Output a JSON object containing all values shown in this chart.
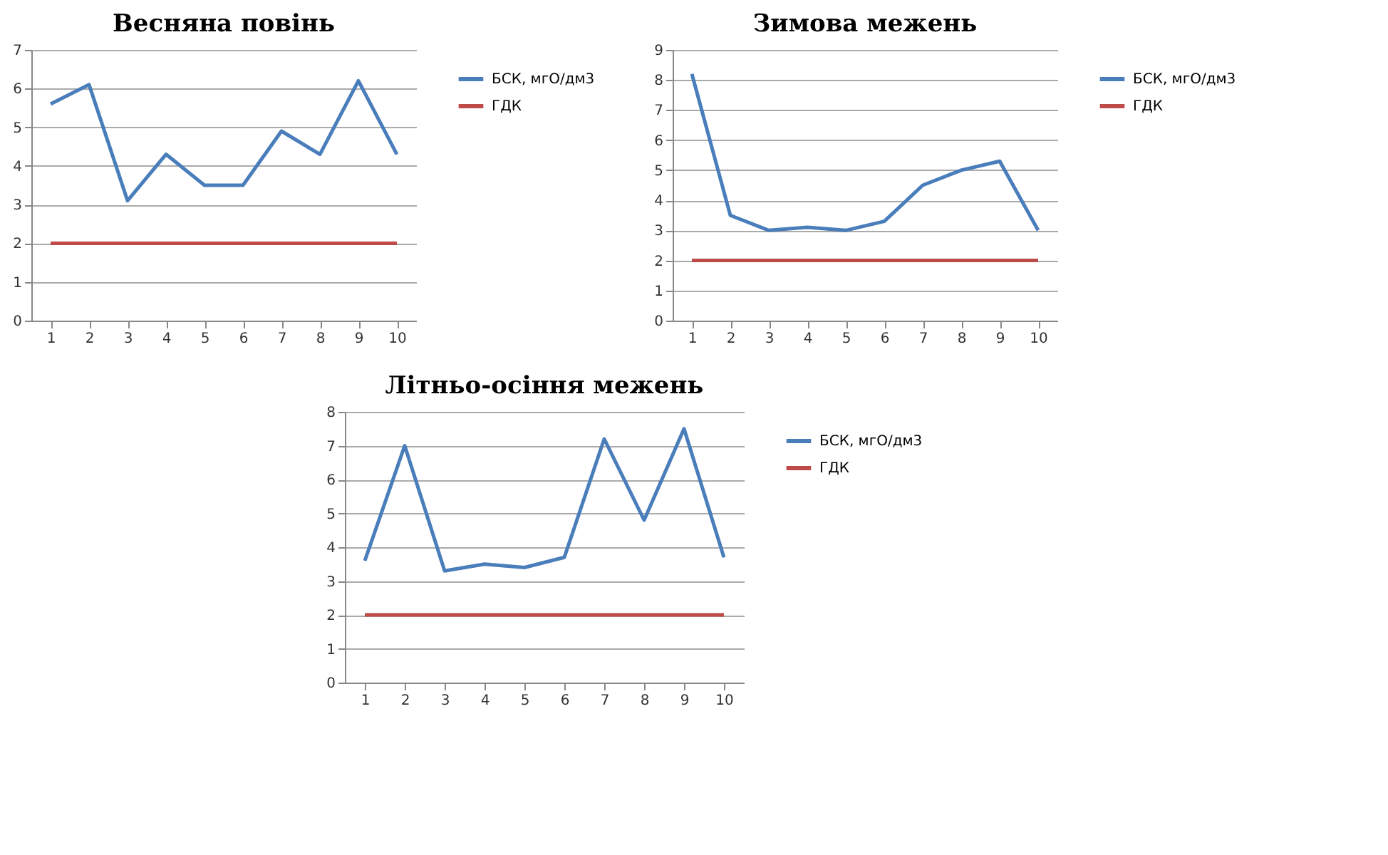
{
  "chart_data": [
    {
      "type": "line",
      "title": "Весняна повінь",
      "categories": [
        "1",
        "2",
        "3",
        "4",
        "5",
        "6",
        "7",
        "8",
        "9",
        "10"
      ],
      "ylim": [
        0,
        7
      ],
      "yticks": [
        0,
        1,
        2,
        3,
        4,
        5,
        6,
        7
      ],
      "grid": "y",
      "legend": "right",
      "series": [
        {
          "name": "БСК, мгО/дм3",
          "color": "#4a7ebb",
          "values": [
            5.6,
            6.1,
            3.1,
            4.3,
            3.5,
            3.5,
            4.9,
            4.3,
            6.2,
            4.3
          ]
        },
        {
          "name": "ГДК",
          "color": "#be4b48",
          "values": [
            2,
            2,
            2,
            2,
            2,
            2,
            2,
            2,
            2,
            2
          ]
        }
      ]
    },
    {
      "type": "line",
      "title": "Зимова межень",
      "categories": [
        "1",
        "2",
        "3",
        "4",
        "5",
        "6",
        "7",
        "8",
        "9",
        "10"
      ],
      "ylim": [
        0,
        9
      ],
      "yticks": [
        0,
        1,
        2,
        3,
        4,
        5,
        6,
        7,
        8,
        9
      ],
      "grid": "y",
      "legend": "right",
      "series": [
        {
          "name": "БСК, мгО/дм3",
          "color": "#4a7ebb",
          "values": [
            8.2,
            3.5,
            3.0,
            3.1,
            3.0,
            3.3,
            4.5,
            5.0,
            5.3,
            3.0
          ]
        },
        {
          "name": "ГДК",
          "color": "#be4b48",
          "values": [
            2,
            2,
            2,
            2,
            2,
            2,
            2,
            2,
            2,
            2
          ]
        }
      ]
    },
    {
      "type": "line",
      "title": "Літньо-осіння  межень",
      "categories": [
        "1",
        "2",
        "3",
        "4",
        "5",
        "6",
        "7",
        "8",
        "9",
        "10"
      ],
      "ylim": [
        0,
        8
      ],
      "yticks": [
        0,
        1,
        2,
        3,
        4,
        5,
        6,
        7,
        8
      ],
      "grid": "y",
      "legend": "right",
      "series": [
        {
          "name": "БСК, мгО/дм3",
          "color": "#4a7ebb",
          "values": [
            3.6,
            7.0,
            3.3,
            3.5,
            3.4,
            3.7,
            7.2,
            4.8,
            7.5,
            3.7
          ]
        },
        {
          "name": "ГДК",
          "color": "#be4b48",
          "values": [
            2,
            2,
            2,
            2,
            2,
            2,
            2,
            2,
            2,
            2
          ]
        }
      ]
    }
  ]
}
